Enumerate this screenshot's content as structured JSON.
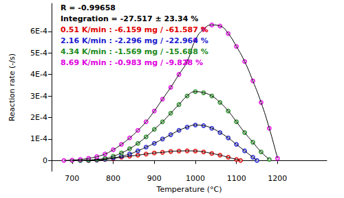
{
  "chart_data": {
    "type": "scatter",
    "x_label": "Temperature (°C)",
    "y_label": "Reaction rate (-/s)",
    "annotations": [
      "R = -0.99658",
      "Integration = -27.517 ± 23.34 %"
    ],
    "xlim": [
      650,
      1320
    ],
    "xticks": [
      700,
      800,
      900,
      1000,
      1100,
      1200
    ],
    "ylim": [
      -5e-05,
      0.00073
    ],
    "yticks": [
      0,
      {
        "value": 0.0001,
        "label": "1E-4"
      },
      {
        "value": 0.0002,
        "label": "2E-4"
      },
      {
        "value": 0.0003,
        "label": "3E-4"
      },
      {
        "value": 0.0004,
        "label": "4E-4"
      },
      {
        "value": 0.0005,
        "label": "5E-4"
      },
      {
        "value": 0.0006,
        "label": "6E-4"
      }
    ],
    "grid": false,
    "marker": "circle-open",
    "series": [
      {
        "name": "0.51 K/min : -6.159 mg / -61.587 %",
        "color": "#e00000",
        "x": [
          740,
          760,
          780,
          800,
          820,
          840,
          860,
          880,
          900,
          920,
          940,
          960,
          980,
          1000,
          1020,
          1040,
          1060,
          1080,
          1100,
          1110
        ],
        "values": [
          0,
          2e-06,
          5e-06,
          1e-05,
          1.5e-05,
          2e-05,
          2.5e-05,
          3e-05,
          3.5e-05,
          3.8e-05,
          4.2e-05,
          4.4e-05,
          4.5e-05,
          4.4e-05,
          4e-05,
          3.3e-05,
          2.5e-05,
          1.5e-05,
          5e-06,
          0
        ],
        "fit": [
          0,
          2e-06,
          5e-06,
          1e-05,
          1.5e-05,
          2e-05,
          2.5e-05,
          3e-05,
          3.5e-05,
          3.8e-05,
          4.2e-05,
          4.4e-05,
          4.5e-05,
          4.4e-05,
          4e-05,
          3.3e-05,
          2.5e-05,
          1.5e-05,
          5e-06,
          0
        ]
      },
      {
        "name": "2.16 K/min : -2.296 mg / -22.964 %",
        "color": "#1a1ad0",
        "x": [
          720,
          740,
          760,
          780,
          800,
          820,
          840,
          860,
          880,
          900,
          920,
          940,
          960,
          980,
          1000,
          1020,
          1040,
          1060,
          1080,
          1100,
          1120,
          1140,
          1150
        ],
        "values": [
          0,
          1e-06,
          3e-06,
          6e-06,
          1.2e-05,
          2e-05,
          3e-05,
          4.5e-05,
          6.2e-05,
          8e-05,
          0.0001,
          0.00012,
          0.00014,
          0.000155,
          0.000165,
          0.000162,
          0.00015,
          0.00013,
          0.000105,
          7.5e-05,
          4.5e-05,
          1.5e-05,
          0
        ],
        "fit": [
          0,
          1e-06,
          3e-06,
          6e-06,
          1.2e-05,
          2e-05,
          3e-05,
          4.5e-05,
          6.2e-05,
          8e-05,
          0.0001,
          0.00012,
          0.00014,
          0.000155,
          0.000165,
          0.000162,
          0.00015,
          0.00013,
          0.000105,
          7.5e-05,
          4.5e-05,
          1.5e-05,
          0
        ]
      },
      {
        "name": "4.34 K/min : -1.569 mg / -15.688 %",
        "color": "#1a8a1a",
        "x": [
          700,
          720,
          740,
          760,
          780,
          800,
          820,
          840,
          860,
          880,
          900,
          920,
          940,
          960,
          980,
          1000,
          1020,
          1040,
          1060,
          1080,
          1100,
          1120,
          1140,
          1160,
          1180
        ],
        "values": [
          0,
          0,
          2e-06,
          5e-06,
          1e-05,
          2e-05,
          3.5e-05,
          5.5e-05,
          8e-05,
          0.00011,
          0.000145,
          0.00018,
          0.00022,
          0.00026,
          0.0003,
          0.00032,
          0.000315,
          0.0003,
          0.00027,
          0.00023,
          0.00018,
          0.00013,
          8.5e-05,
          4e-05,
          5e-06
        ],
        "fit": [
          0,
          0,
          2e-06,
          5e-06,
          1e-05,
          2e-05,
          3.5e-05,
          5.5e-05,
          8e-05,
          0.00011,
          0.000145,
          0.00018,
          0.00022,
          0.00026,
          0.0003,
          0.00032,
          0.000315,
          0.0003,
          0.00027,
          0.00023,
          0.00018,
          0.00013,
          8.5e-05,
          4e-05,
          5e-06
        ]
      },
      {
        "name": "8.69 K/min : -0.983 mg / -9.828 %",
        "color": "#e000e0",
        "x": [
          680,
          700,
          720,
          740,
          760,
          780,
          800,
          820,
          840,
          860,
          880,
          900,
          920,
          940,
          960,
          980,
          1000,
          1020,
          1040,
          1060,
          1080,
          1100,
          1120,
          1140,
          1160,
          1180,
          1200
        ],
        "values": [
          0,
          2e-06,
          5e-06,
          1e-05,
          1.8e-05,
          3e-05,
          5e-05,
          7.5e-05,
          0.000105,
          0.00014,
          0.00018,
          0.00023,
          0.000285,
          0.00034,
          0.0004,
          0.00046,
          0.00056,
          0.00061,
          0.00063,
          0.000625,
          0.00059,
          0.00053,
          0.00046,
          0.00037,
          0.00027,
          0.00015,
          1e-05
        ],
        "fit": [
          0,
          2e-06,
          5e-06,
          1e-05,
          1.8e-05,
          3e-05,
          5e-05,
          7.5e-05,
          0.000105,
          0.00014,
          0.00018,
          0.00023,
          0.000285,
          0.00034,
          0.0004,
          0.00046,
          0.00056,
          0.00061,
          0.00063,
          0.000625,
          0.00059,
          0.00053,
          0.00046,
          0.00037,
          0.00027,
          0.00015,
          1e-05
        ]
      }
    ]
  }
}
